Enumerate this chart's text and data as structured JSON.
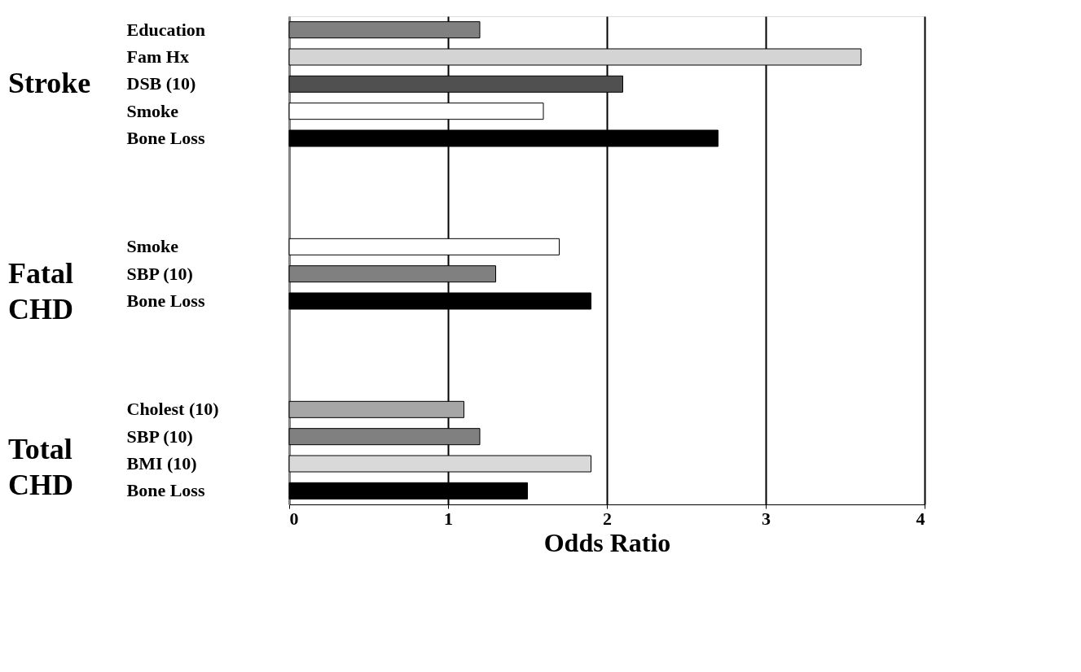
{
  "chart_data": {
    "type": "bar",
    "orientation": "horizontal",
    "categories": [
      "Education",
      "Fam Hx",
      "DSB (10)",
      "Smoke",
      "Bone Loss",
      null,
      null,
      null,
      "Smoke",
      "SBP (10)",
      "Bone Loss",
      null,
      null,
      null,
      "Cholest (10)",
      "SBP (10)",
      "BMI (10)",
      "Bone Loss"
    ],
    "values": [
      1.2,
      3.6,
      2.1,
      1.6,
      2.7,
      null,
      null,
      null,
      1.7,
      1.3,
      1.9,
      null,
      null,
      null,
      1.1,
      1.2,
      1.9,
      1.5
    ],
    "colors": [
      "#808080",
      "#d4d4d4",
      "#505050",
      "#ffffff",
      "#000000",
      null,
      null,
      null,
      "#ffffff",
      "#808080",
      "#000000",
      null,
      null,
      null,
      "#a6a6a6",
      "#808080",
      "#d9d9d9",
      "#000000"
    ],
    "annotations": [
      "Stroke",
      "Fatal CHD",
      "Total CHD"
    ],
    "xlabel": "Odds Ratio",
    "xlim": [
      0,
      4
    ],
    "xticks": [
      0,
      1,
      2,
      3,
      4
    ],
    "grid": "x"
  }
}
